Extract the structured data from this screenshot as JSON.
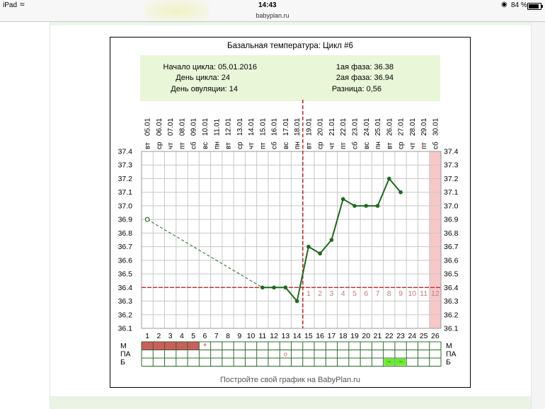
{
  "status_bar": {
    "device": "iPad",
    "time": "14:43",
    "battery": "84 %"
  },
  "browser": {
    "url": "babyplan.ru"
  },
  "colors": {
    "line": "#1d6a1d",
    "cover": "#c62828",
    "stripe_m": "#cd5c5c",
    "stripe_b": "#66ee22",
    "last_day": "#f7c8c8",
    "info_bg": "#e9f6d8"
  },
  "info": {
    "cycle_start": "Начало цикла: 05.01.2016",
    "cycle_day": "День цикла: 24",
    "ovulation_day": "День овуляции: 14",
    "phase1": "1ая фаза: 36.38",
    "phase2": "2ая фаза: 36.94",
    "difference": "Разница: 0,56"
  },
  "footer": "Постройте свой график на BabyPlan.ru",
  "chart_data": {
    "type": "line",
    "title": "Базальная температура: Цикл #6",
    "x": [
      1,
      2,
      3,
      4,
      5,
      6,
      7,
      8,
      9,
      10,
      11,
      12,
      13,
      14,
      15,
      16,
      17,
      18,
      19,
      20,
      21,
      22,
      23,
      24,
      25,
      26
    ],
    "dates": [
      "05.01",
      "06.01",
      "07.01",
      "08.01",
      "09.01",
      "10.01",
      "11.01",
      "12.01",
      "13.01",
      "14.01",
      "15.01",
      "16.01",
      "17.01",
      "18.01",
      "19.01",
      "20.01",
      "21.01",
      "22.01",
      "23.01",
      "24.01",
      "25.01",
      "26.01",
      "27.01",
      "28.01",
      "29.01",
      "30.01"
    ],
    "weekdays": [
      "вт",
      "ср",
      "чт",
      "пт",
      "сб",
      "вс",
      "пн",
      "вт",
      "ср",
      "чт",
      "пт",
      "сб",
      "вс",
      "пн",
      "вт",
      "ср",
      "чт",
      "пт",
      "сб",
      "вс",
      "пн",
      "вт",
      "ср",
      "чт",
      "пт",
      "сб"
    ],
    "ylim": [
      36.1,
      37.4
    ],
    "yticks": [
      "36.1",
      "36.2",
      "36.3",
      "36.4",
      "36.5",
      "36.6",
      "36.7",
      "36.8",
      "36.9",
      "37.0",
      "37.1",
      "37.2",
      "37.3",
      "37.4"
    ],
    "series": [
      {
        "values": [
          36.9,
          null,
          null,
          null,
          null,
          null,
          null,
          null,
          null,
          null,
          36.4,
          36.4,
          36.4,
          36.3,
          36.7,
          36.65,
          36.75,
          37.05,
          37.0,
          37.0,
          37.0,
          37.2,
          37.1,
          null,
          null,
          null
        ]
      }
    ],
    "coverline": 36.4,
    "ovulation_day": 14,
    "luteal_labels": [
      "1",
      "2",
      "3",
      "4",
      "5",
      "6",
      "7",
      "8",
      "9",
      "10",
      "11",
      "12"
    ],
    "bottom_rows": [
      "М",
      "ПА",
      "Б"
    ],
    "menstruation_days": [
      1,
      2,
      3,
      4,
      5
    ],
    "m_star_day": 6,
    "m_star": "*",
    "pa_mark_day": 13,
    "pa_mark": "о",
    "b_mark_days": [
      22,
      23
    ],
    "b_mark": "~"
  }
}
